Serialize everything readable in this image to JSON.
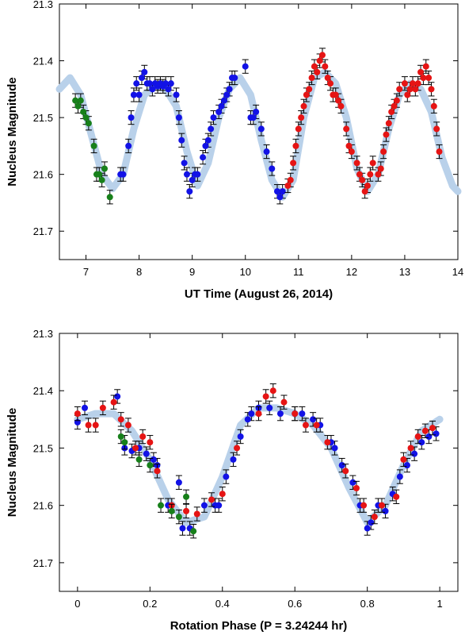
{
  "chart_data": [
    {
      "type": "scatter",
      "xlabel": "UT Time  (August 26, 2014)",
      "ylabel": "Nucleus Magnitude",
      "xlim": [
        6.5,
        14
      ],
      "xticks": [
        7,
        8,
        9,
        10,
        11,
        12,
        13,
        14
      ],
      "ylim": [
        21.3,
        21.75
      ],
      "yticks": [
        21.3,
        21.4,
        21.5,
        21.6,
        21.7
      ],
      "y_inverted": true,
      "curve": {
        "color": "#b9d1ea",
        "x": [
          6.5,
          6.7,
          6.9,
          7.1,
          7.3,
          7.5,
          7.7,
          7.9,
          8.1,
          8.3,
          8.5,
          8.7,
          8.9,
          9.1,
          9.3,
          9.5,
          9.7,
          9.9,
          10.1,
          10.3,
          10.5,
          10.7,
          10.9,
          11.1,
          11.3,
          11.5,
          11.7,
          11.9,
          12.1,
          12.3,
          12.5,
          12.7,
          12.9,
          13.1,
          13.3,
          13.5,
          13.7,
          13.9,
          14.0
        ],
        "values": [
          21.45,
          21.43,
          21.46,
          21.53,
          21.6,
          21.625,
          21.6,
          21.52,
          21.46,
          21.445,
          21.45,
          21.48,
          21.56,
          21.62,
          21.58,
          21.5,
          21.45,
          21.43,
          21.46,
          21.54,
          21.61,
          21.64,
          21.61,
          21.5,
          21.43,
          21.42,
          21.44,
          21.5,
          21.59,
          21.63,
          21.6,
          21.52,
          21.46,
          21.44,
          21.45,
          21.49,
          21.57,
          21.62,
          21.63
        ]
      },
      "series": [
        {
          "color": "#17801a",
          "error": 0.012,
          "x": [
            6.8,
            6.85,
            6.9,
            6.95,
            7.0,
            7.05,
            7.15,
            7.2,
            7.25,
            7.3,
            7.35,
            7.45
          ],
          "values": [
            21.47,
            21.48,
            21.47,
            21.49,
            21.5,
            21.51,
            21.55,
            21.6,
            21.6,
            21.61,
            21.59,
            21.64
          ]
        },
        {
          "color": "#1212e6",
          "error": 0.012,
          "x": [
            7.65,
            7.7,
            7.8,
            7.85,
            7.9,
            7.95,
            8.0,
            8.05,
            8.1,
            8.15,
            8.2,
            8.25,
            8.3,
            8.35,
            8.4,
            8.45,
            8.5,
            8.55,
            8.6,
            8.7,
            8.75,
            8.8,
            8.85,
            8.9,
            8.95,
            9.0,
            9.05,
            9.1,
            9.2,
            9.25,
            9.3,
            9.35,
            9.4,
            9.5,
            9.55,
            9.6,
            9.65,
            9.7,
            9.75,
            9.8,
            10.0,
            10.1,
            10.15,
            10.2,
            10.3,
            10.4,
            10.5,
            10.6,
            10.65,
            10.7
          ],
          "values": [
            21.6,
            21.6,
            21.55,
            21.5,
            21.46,
            21.44,
            21.46,
            21.43,
            21.42,
            21.44,
            21.44,
            21.45,
            21.44,
            21.445,
            21.44,
            21.445,
            21.44,
            21.45,
            21.44,
            21.46,
            21.5,
            21.54,
            21.58,
            21.6,
            21.63,
            21.61,
            21.6,
            21.6,
            21.57,
            21.55,
            21.54,
            21.52,
            21.5,
            21.49,
            21.48,
            21.47,
            21.46,
            21.45,
            21.43,
            21.43,
            21.41,
            21.5,
            21.5,
            21.49,
            21.52,
            21.56,
            21.59,
            21.63,
            21.64,
            21.63
          ]
        },
        {
          "color": "#e61414",
          "error": 0.012,
          "x": [
            10.8,
            10.85,
            10.9,
            10.95,
            11.0,
            11.05,
            11.1,
            11.15,
            11.2,
            11.25,
            11.3,
            11.35,
            11.4,
            11.45,
            11.5,
            11.55,
            11.6,
            11.65,
            11.7,
            11.75,
            11.8,
            11.9,
            11.95,
            12.0,
            12.1,
            12.15,
            12.2,
            12.25,
            12.3,
            12.35,
            12.4,
            12.5,
            12.55,
            12.6,
            12.65,
            12.7,
            12.75,
            12.8,
            12.85,
            12.9,
            13.0,
            13.05,
            13.1,
            13.15,
            13.2,
            13.25,
            13.3,
            13.35,
            13.4,
            13.45,
            13.5,
            13.55,
            13.6,
            13.65
          ],
          "values": [
            21.62,
            21.61,
            21.58,
            21.55,
            21.52,
            21.5,
            21.48,
            21.46,
            21.45,
            21.43,
            21.41,
            21.42,
            21.4,
            21.39,
            21.41,
            21.43,
            21.44,
            21.46,
            21.46,
            21.47,
            21.48,
            21.52,
            21.55,
            21.56,
            21.58,
            21.6,
            21.61,
            21.63,
            21.62,
            21.6,
            21.58,
            21.6,
            21.59,
            21.56,
            21.53,
            21.51,
            21.49,
            21.48,
            21.47,
            21.45,
            21.44,
            21.46,
            21.45,
            21.44,
            21.45,
            21.44,
            21.42,
            21.43,
            21.41,
            21.43,
            21.45,
            21.48,
            21.52,
            21.56
          ]
        }
      ]
    },
    {
      "type": "scatter",
      "xlabel": "Rotation Phase  (P = 3.24244 hr)",
      "ylabel": "Nucleus Magnitude",
      "xlim": [
        -0.05,
        1.05
      ],
      "xticks": [
        0,
        0.2,
        0.4,
        0.6,
        0.8,
        1
      ],
      "ylim": [
        21.3,
        21.75
      ],
      "yticks": [
        21.3,
        21.4,
        21.5,
        21.6,
        21.7
      ],
      "y_inverted": true,
      "curve": {
        "color": "#b9d1ea",
        "x": [
          0,
          0.05,
          0.1,
          0.15,
          0.2,
          0.25,
          0.3,
          0.35,
          0.4,
          0.45,
          0.5,
          0.55,
          0.6,
          0.65,
          0.7,
          0.75,
          0.8,
          0.85,
          0.9,
          0.95,
          1.0
        ],
        "values": [
          21.45,
          21.44,
          21.44,
          21.47,
          21.52,
          21.59,
          21.63,
          21.62,
          21.55,
          21.46,
          21.43,
          21.43,
          21.44,
          21.46,
          21.5,
          21.57,
          21.63,
          21.6,
          21.53,
          21.47,
          21.45
        ]
      },
      "series": [
        {
          "color": "#1212e6",
          "error": 0.012,
          "x": [
            0,
            0.02,
            0.11,
            0.13,
            0.15,
            0.17,
            0.19,
            0.21,
            0.22,
            0.25,
            0.28,
            0.29,
            0.31,
            0.35,
            0.38,
            0.39,
            0.41,
            0.43,
            0.45,
            0.47,
            0.48,
            0.5,
            0.53,
            0.56,
            0.6,
            0.62,
            0.65,
            0.67,
            0.7,
            0.71,
            0.73,
            0.76,
            0.78,
            0.8,
            0.81,
            0.83,
            0.85,
            0.87,
            0.89,
            0.91,
            0.93,
            0.95,
            0.97,
            0.99
          ],
          "values": [
            21.455,
            21.43,
            21.41,
            21.5,
            21.505,
            21.5,
            21.51,
            21.52,
            21.53,
            21.6,
            21.56,
            21.64,
            21.64,
            21.6,
            21.6,
            21.6,
            21.55,
            21.52,
            21.48,
            21.45,
            21.44,
            21.43,
            21.43,
            21.44,
            21.44,
            21.44,
            21.45,
            21.46,
            21.49,
            21.5,
            21.53,
            21.56,
            21.6,
            21.64,
            21.63,
            21.6,
            21.61,
            21.58,
            21.55,
            21.53,
            21.51,
            21.49,
            21.48,
            21.475
          ]
        },
        {
          "color": "#e61414",
          "error": 0.012,
          "x": [
            0,
            0.03,
            0.05,
            0.07,
            0.1,
            0.12,
            0.14,
            0.16,
            0.18,
            0.2,
            0.22,
            0.26,
            0.3,
            0.33,
            0.37,
            0.4,
            0.44,
            0.5,
            0.52,
            0.54,
            0.57,
            0.6,
            0.63,
            0.66,
            0.69,
            0.74,
            0.77,
            0.79,
            0.82,
            0.84,
            0.88,
            0.9,
            0.92,
            0.94,
            0.96,
            0.98
          ],
          "values": [
            21.44,
            21.46,
            21.46,
            21.43,
            21.42,
            21.45,
            21.46,
            21.5,
            21.48,
            21.49,
            21.54,
            21.6,
            21.61,
            21.615,
            21.59,
            21.58,
            21.5,
            21.44,
            21.41,
            21.4,
            21.42,
            21.44,
            21.46,
            21.46,
            21.49,
            21.54,
            21.57,
            21.6,
            21.62,
            21.6,
            21.585,
            21.52,
            21.5,
            21.48,
            21.47,
            21.465
          ]
        },
        {
          "color": "#17801a",
          "error": 0.012,
          "x": [
            0.12,
            0.13,
            0.17,
            0.2,
            0.23,
            0.26,
            0.28,
            0.3,
            0.32
          ],
          "values": [
            21.48,
            21.49,
            21.52,
            21.53,
            21.6,
            21.61,
            21.62,
            21.585,
            21.645
          ]
        }
      ]
    }
  ]
}
